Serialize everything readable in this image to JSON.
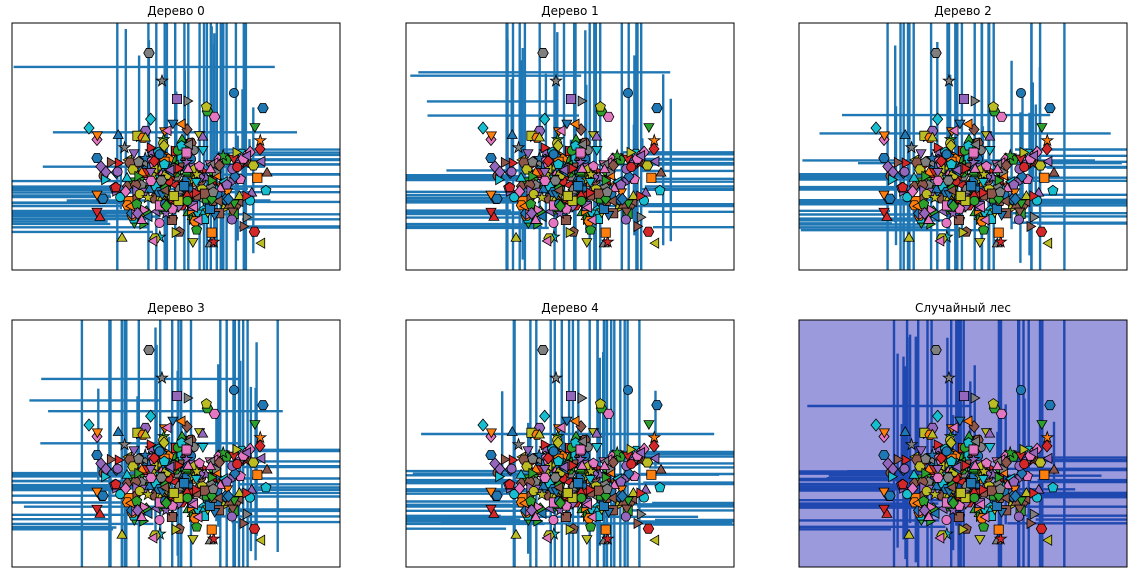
{
  "figure": {
    "background": "#ffffff",
    "tree_line_color": "#1f77b4",
    "forest_fill_color": "#9a9add",
    "forest_line_color": "#1f48b0",
    "marker_palette": [
      "#1f77b4",
      "#ff7f0e",
      "#2ca02c",
      "#d62728",
      "#9467bd",
      "#8c564b",
      "#e377c2",
      "#7f7f7f",
      "#bcbd22",
      "#17becf"
    ],
    "marker_shapes": [
      "circle",
      "square",
      "diamond",
      "triangle-up",
      "triangle-down",
      "triangle-left",
      "triangle-right",
      "pentagon",
      "hexagon",
      "star"
    ]
  },
  "chart_data": [
    {
      "type": "scatter",
      "title": "Дерево 0",
      "kind": "tree",
      "seed": 11
    },
    {
      "type": "scatter",
      "title": "Дерево 1",
      "kind": "tree",
      "seed": 23
    },
    {
      "type": "scatter",
      "title": "Дерево 2",
      "kind": "tree",
      "seed": 37
    },
    {
      "type": "scatter",
      "title": "Дерево 3",
      "kind": "tree",
      "seed": 41
    },
    {
      "type": "scatter",
      "title": "Дерево 4",
      "kind": "tree",
      "seed": 53
    },
    {
      "type": "scatter",
      "title": "Случайный лес",
      "kind": "forest",
      "seed": 67
    }
  ]
}
